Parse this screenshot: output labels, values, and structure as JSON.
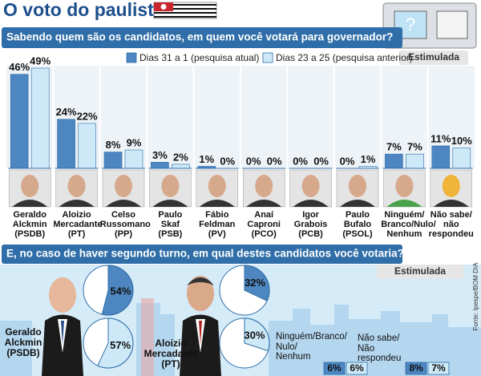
{
  "header": {
    "title": "O voto do paulista",
    "source": "Fonte: Ipespe/BOM DIA"
  },
  "chart_data": [
    {
      "type": "bar",
      "title": "Sabendo quem são os candidatos, em quem você votará para governador?",
      "note": "Estimulada",
      "categories": [
        "Geraldo\nAlckmin\n(PSDB)",
        "Aloizio\nMercadante\n(PT)",
        "Celso\nRussomano\n(PP)",
        "Paulo\nSkaf\n(PSB)",
        "Fábio\nFeldman\n(PV)",
        "Anaí\nCaproni\n(PCO)",
        "Igor\nGrabois\n(PCB)",
        "Paulo\nBufalo\n(PSOL)",
        "Ninguém/\nBranco/Nulo/\nNenhum",
        "Não sabe/\nnão\nrespondeu"
      ],
      "series": [
        {
          "name": "Dias 31 a 1 (pesquisa atual)",
          "color": "#4d86c0",
          "values": [
            46,
            24,
            8,
            3,
            1,
            0,
            0,
            0,
            7,
            11
          ],
          "value_labels": [
            "46%",
            "24%",
            "8%",
            "3%",
            "1%",
            "0%",
            "0%",
            "0%",
            "7%",
            "11%"
          ]
        },
        {
          "name": "Dias 23 a 25 (pesquisa anterior)",
          "color": "#cde9f8",
          "values": [
            49,
            22,
            9,
            2,
            0,
            0,
            0,
            1,
            7,
            10
          ],
          "value_labels": [
            "49%",
            "22%",
            "9%",
            "2%",
            "0%",
            "0%",
            "0%",
            "1%",
            "7%",
            "10%"
          ]
        }
      ]
    },
    {
      "type": "pie",
      "title": "E, no caso de haver segundo turno, em qual destes candidatos você votaria?",
      "note": "Estimulada",
      "categories": [
        "Geraldo\nAlckmin\n(PSDB)",
        "Aloizio\nMercadante\n(PT)",
        "Ninguém/Branco/\nNulo/\nNenhum",
        "Não sabe/\nNão\nrespondeu"
      ],
      "series": [
        {
          "color": "#4d86c0",
          "values": [
            54,
            32,
            6,
            8
          ],
          "value_labels": [
            "54%",
            "32%",
            "6%",
            "8%"
          ]
        },
        {
          "color": "#cde9f8",
          "values": [
            57,
            30,
            6,
            7
          ],
          "value_labels": [
            "57%",
            "30%",
            "6%",
            "7%"
          ]
        }
      ]
    }
  ]
}
